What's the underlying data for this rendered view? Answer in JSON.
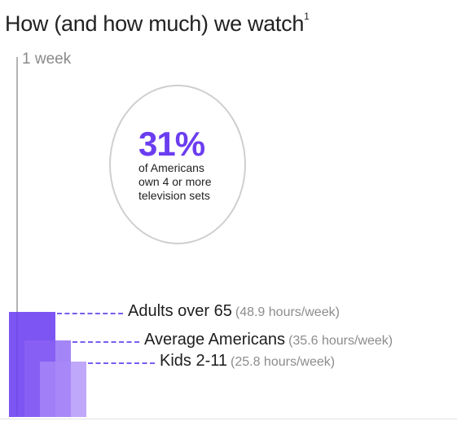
{
  "title": "How (and how much) we watch",
  "title_sup": "1",
  "axis_label": "1 week",
  "stat": {
    "value": "31%",
    "lines": [
      "of Americans",
      "own 4 or more",
      "television sets"
    ]
  },
  "chart_data": {
    "type": "bar",
    "unit": "hours/week",
    "axis_max": 168,
    "series": [
      {
        "name": "Adults over 65",
        "display": "(48.9 hours/week)",
        "value": 48.9,
        "color": "#6b3df0",
        "opacity": 0.88
      },
      {
        "name": "Average Americans",
        "display": "(35.6 hours/week)",
        "value": 35.6,
        "color": "#8b63f5",
        "opacity": 0.78
      },
      {
        "name": "Kids 2-11",
        "display": "(25.8 hours/week)",
        "value": 25.8,
        "color": "#a989f8",
        "opacity": 0.75
      }
    ]
  },
  "colors": {
    "accent": "#6b3df0",
    "leader": "#7a5cf0",
    "axis": "#b3b3b3"
  }
}
